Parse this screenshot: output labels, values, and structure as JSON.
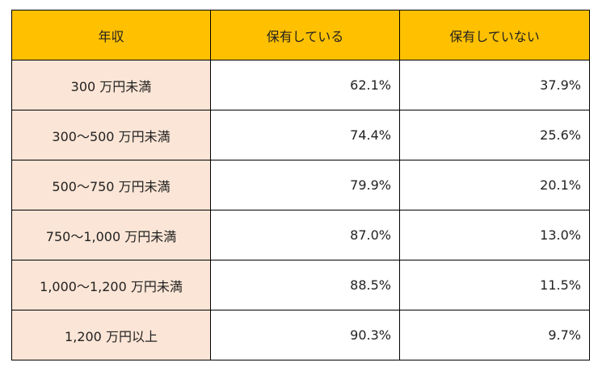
{
  "table": {
    "header": [
      "年収",
      "保有している",
      "保有していない"
    ],
    "rows": [
      [
        "300 万円未満",
        "62.1%",
        "37.9%"
      ],
      [
        "300～500 万円未満",
        "74.4%",
        "25.6%"
      ],
      [
        "500～750 万円未満",
        "79.9%",
        "20.1%"
      ],
      [
        "750～1,000 万円未満",
        "87.0%",
        "13.0%"
      ],
      [
        "1,000～1,200 万円未満",
        "88.5%",
        "11.5%"
      ],
      [
        "1,200 万円以上",
        "90.3%",
        "9.7%"
      ]
    ]
  }
}
